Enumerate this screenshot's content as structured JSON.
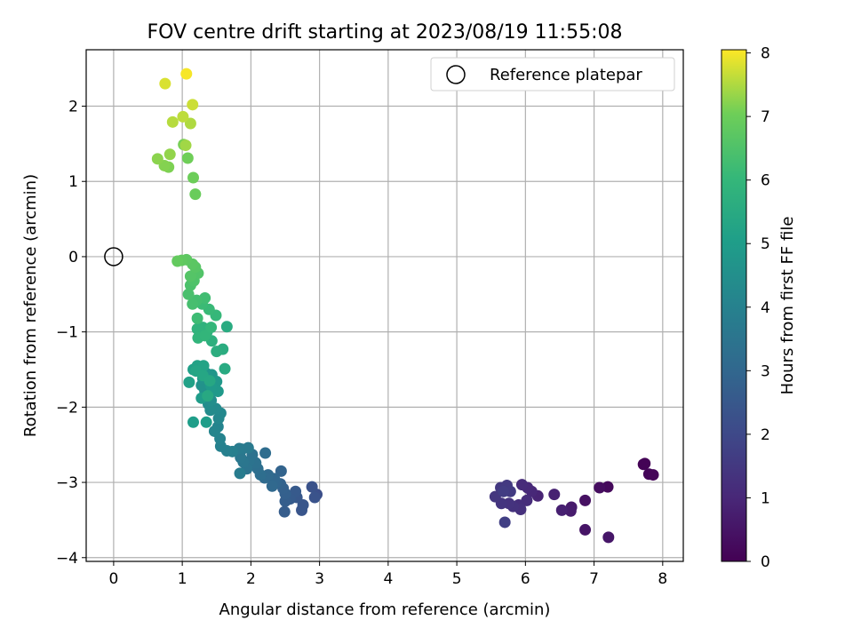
{
  "chart_data": {
    "type": "scatter",
    "title": "FOV centre drift starting at 2023/08/19 11:55:08",
    "xlabel": "Angular distance from reference (arcmin)",
    "ylabel": "Rotation from reference (arcmin)",
    "xlim": [
      -0.4,
      8.3
    ],
    "ylim": [
      -4.05,
      2.75
    ],
    "xticks": [
      0,
      1,
      2,
      3,
      4,
      5,
      6,
      7,
      8
    ],
    "yticks": [
      -4,
      -3,
      -2,
      -1,
      0,
      1,
      2
    ],
    "xtick_labels": [
      "0",
      "1",
      "2",
      "3",
      "4",
      "5",
      "6",
      "7",
      "8"
    ],
    "ytick_labels": [
      "−4",
      "−3",
      "−2",
      "−1",
      "0",
      "1",
      "2"
    ],
    "grid": true,
    "colormap": "viridis",
    "colorbar": {
      "label": "Hours from first FF file",
      "range": [
        0,
        8.05
      ],
      "ticks": [
        0,
        1,
        2,
        3,
        4,
        5,
        6,
        7,
        8
      ],
      "tick_labels": [
        "0",
        "1",
        "2",
        "3",
        "4",
        "5",
        "6",
        "7",
        "8"
      ]
    },
    "legend": {
      "position": "top-right",
      "entries": [
        "Reference platepar"
      ]
    },
    "reference_point": {
      "x": 0,
      "y": 0
    },
    "points": [
      [
        7.72,
        -2.76,
        0.02
      ],
      [
        7.74,
        -2.75,
        0.06
      ],
      [
        7.8,
        -2.89,
        0.1
      ],
      [
        7.86,
        -2.9,
        0.14
      ],
      [
        7.2,
        -3.06,
        0.2
      ],
      [
        7.08,
        -3.07,
        0.3
      ],
      [
        6.87,
        -3.24,
        0.4
      ],
      [
        6.87,
        -3.63,
        0.5
      ],
      [
        7.21,
        -3.73,
        0.55
      ],
      [
        6.67,
        -3.33,
        0.65
      ],
      [
        6.66,
        -3.38,
        0.7
      ],
      [
        6.53,
        -3.37,
        0.8
      ],
      [
        6.42,
        -3.16,
        0.85
      ],
      [
        6.18,
        -3.18,
        0.9
      ],
      [
        6.09,
        -3.12,
        1.0
      ],
      [
        6.03,
        -3.07,
        1.05
      ],
      [
        5.95,
        -3.03,
        1.1
      ],
      [
        6.02,
        -3.24,
        1.15
      ],
      [
        5.9,
        -3.3,
        1.2
      ],
      [
        5.93,
        -3.36,
        1.25
      ],
      [
        5.82,
        -3.32,
        1.3
      ],
      [
        5.76,
        -3.28,
        1.35
      ],
      [
        5.65,
        -3.28,
        1.4
      ],
      [
        5.56,
        -3.19,
        1.45
      ],
      [
        5.64,
        -3.07,
        1.5
      ],
      [
        5.73,
        -3.04,
        1.55
      ],
      [
        5.78,
        -3.12,
        1.6
      ],
      [
        5.68,
        -3.12,
        1.65
      ],
      [
        5.7,
        -3.53,
        1.7
      ],
      [
        2.96,
        -3.16,
        2.2
      ],
      [
        2.89,
        -3.06,
        2.3
      ],
      [
        2.93,
        -3.2,
        2.35
      ],
      [
        2.74,
        -3.37,
        2.4
      ],
      [
        2.76,
        -3.3,
        2.45
      ],
      [
        2.67,
        -3.2,
        2.5
      ],
      [
        2.65,
        -3.12,
        2.55
      ],
      [
        2.57,
        -3.22,
        2.6
      ],
      [
        2.49,
        -3.39,
        2.65
      ],
      [
        2.5,
        -3.25,
        2.7
      ],
      [
        2.5,
        -3.15,
        2.75
      ],
      [
        2.47,
        -3.08,
        2.8
      ],
      [
        2.43,
        -3.02,
        2.85
      ],
      [
        2.44,
        -2.85,
        2.9
      ],
      [
        2.37,
        -3.0,
        2.95
      ],
      [
        2.34,
        -2.95,
        3.0
      ],
      [
        2.31,
        -3.05,
        3.05
      ],
      [
        2.25,
        -2.9,
        3.1
      ],
      [
        2.2,
        -2.94,
        3.15
      ],
      [
        2.21,
        -2.61,
        3.2
      ],
      [
        2.14,
        -2.9,
        3.25
      ],
      [
        2.1,
        -2.82,
        3.3
      ],
      [
        2.07,
        -2.74,
        3.35
      ],
      [
        2.02,
        -2.63,
        3.4
      ],
      [
        1.97,
        -2.72,
        3.45
      ],
      [
        1.94,
        -2.82,
        3.5
      ],
      [
        1.89,
        -2.73,
        3.55
      ],
      [
        1.85,
        -2.67,
        3.6
      ],
      [
        1.87,
        -2.56,
        3.65
      ],
      [
        1.96,
        -2.54,
        3.7
      ],
      [
        1.83,
        -2.55,
        3.75
      ],
      [
        1.84,
        -2.88,
        3.8
      ],
      [
        1.73,
        -2.59,
        3.9
      ],
      [
        1.65,
        -2.58,
        3.95
      ],
      [
        1.56,
        -2.52,
        4.0
      ],
      [
        1.55,
        -2.42,
        4.05
      ],
      [
        1.52,
        -2.26,
        4.1
      ],
      [
        1.47,
        -2.32,
        4.15
      ],
      [
        1.53,
        -2.15,
        4.2
      ],
      [
        1.56,
        -2.08,
        4.25
      ],
      [
        1.49,
        -2.02,
        4.3
      ],
      [
        1.41,
        -2.04,
        4.35
      ],
      [
        1.38,
        -1.96,
        4.4
      ],
      [
        1.42,
        -1.91,
        4.45
      ],
      [
        1.38,
        -1.82,
        4.5
      ],
      [
        1.33,
        -1.78,
        4.55
      ],
      [
        1.28,
        -1.71,
        4.6
      ],
      [
        1.3,
        -1.62,
        4.65
      ],
      [
        1.35,
        -1.55,
        4.7
      ],
      [
        1.43,
        -1.57,
        4.75
      ],
      [
        1.5,
        -1.66,
        4.8
      ],
      [
        1.52,
        -1.79,
        4.85
      ],
      [
        1.42,
        -1.72,
        4.9
      ],
      [
        1.28,
        -1.88,
        4.95
      ],
      [
        1.35,
        -2.2,
        5.0
      ],
      [
        1.16,
        -2.2,
        5.05
      ],
      [
        1.16,
        -1.5,
        5.1
      ],
      [
        1.1,
        -1.67,
        5.15
      ],
      [
        1.22,
        -1.45,
        5.2
      ],
      [
        1.31,
        -1.45,
        5.25
      ],
      [
        1.2,
        -1.52,
        5.3
      ],
      [
        1.3,
        -1.58,
        5.35
      ],
      [
        1.4,
        -1.65,
        5.4
      ],
      [
        1.37,
        -1.85,
        5.45
      ],
      [
        1.62,
        -1.49,
        5.5
      ],
      [
        1.59,
        -1.23,
        5.6
      ],
      [
        1.5,
        -1.26,
        5.65
      ],
      [
        1.43,
        -1.12,
        5.7
      ],
      [
        1.36,
        -1.0,
        5.75
      ],
      [
        1.3,
        -0.94,
        5.8
      ],
      [
        1.22,
        -0.96,
        5.85
      ],
      [
        1.23,
        -1.08,
        5.9
      ],
      [
        1.33,
        -1.05,
        5.95
      ],
      [
        1.42,
        -0.94,
        6.0
      ],
      [
        1.49,
        -0.78,
        6.05
      ],
      [
        1.39,
        -0.7,
        6.1
      ],
      [
        1.29,
        -0.63,
        6.15
      ],
      [
        1.22,
        -0.82,
        6.2
      ],
      [
        1.33,
        -0.55,
        6.25
      ],
      [
        1.21,
        -0.58,
        6.3
      ],
      [
        1.15,
        -0.63,
        6.35
      ],
      [
        1.09,
        -0.5,
        6.4
      ],
      [
        1.12,
        -0.38,
        6.45
      ],
      [
        1.17,
        -0.32,
        6.5
      ],
      [
        1.23,
        -0.22,
        6.55
      ],
      [
        1.12,
        -0.26,
        6.6
      ],
      [
        1.19,
        -0.14,
        6.65
      ],
      [
        1.15,
        -0.1,
        6.7
      ],
      [
        1.06,
        -0.04,
        6.75
      ],
      [
        0.99,
        -0.05,
        6.8
      ],
      [
        0.93,
        -0.06,
        6.85
      ],
      [
        1.65,
        -0.93,
        5.55
      ],
      [
        1.19,
        0.83,
        6.95
      ],
      [
        1.16,
        1.05,
        7.0
      ],
      [
        1.08,
        1.31,
        7.05
      ],
      [
        1.02,
        1.49,
        7.1
      ],
      [
        0.8,
        1.19,
        7.15
      ],
      [
        0.74,
        1.21,
        7.2
      ],
      [
        0.64,
        1.3,
        7.25
      ],
      [
        0.82,
        1.36,
        7.3
      ],
      [
        1.05,
        1.48,
        7.4
      ],
      [
        1.12,
        1.77,
        7.5
      ],
      [
        0.86,
        1.79,
        7.55
      ],
      [
        1.01,
        1.86,
        7.6
      ],
      [
        1.15,
        2.02,
        7.7
      ],
      [
        0.75,
        2.3,
        7.8
      ],
      [
        1.06,
        2.43,
        8.0
      ]
    ]
  }
}
